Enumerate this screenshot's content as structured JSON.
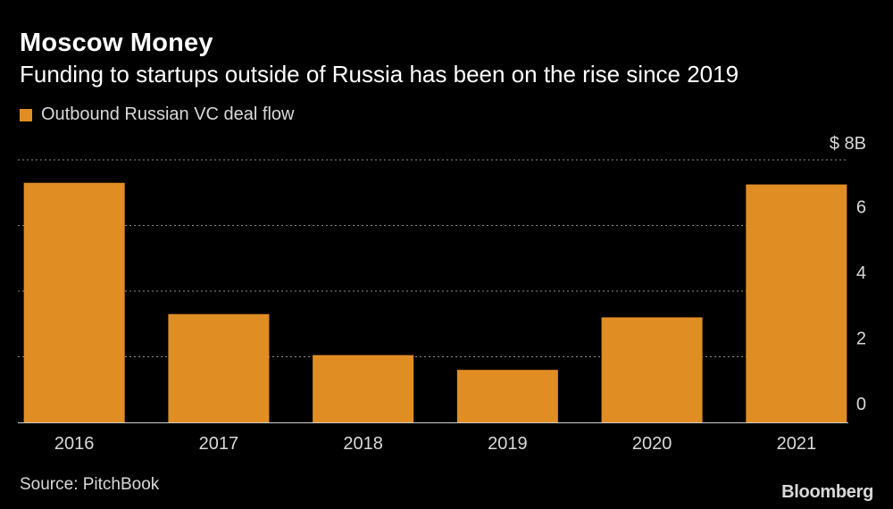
{
  "header": {
    "title": "Moscow Money",
    "subtitle": "Funding to startups outside of Russia has been on the rise since 2019"
  },
  "legend": {
    "label": "Outbound Russian VC deal flow"
  },
  "footer": {
    "source": "Source: PitchBook",
    "logo": "Bloomberg"
  },
  "colors": {
    "bar": "#e08e24",
    "grid": "#8a8a8a",
    "axis_text": "#d9d9d9"
  },
  "chart_data": {
    "type": "bar",
    "categories": [
      "2016",
      "2017",
      "2018",
      "2019",
      "2020",
      "2021"
    ],
    "series": [
      {
        "name": "Outbound Russian VC deal flow",
        "values": [
          7.3,
          3.3,
          2.05,
          1.6,
          3.2,
          7.25
        ]
      }
    ],
    "ylim": [
      0,
      8
    ],
    "yticks": [
      {
        "value": 8,
        "label": "$ 8B"
      },
      {
        "value": 6,
        "label": "6"
      },
      {
        "value": 4,
        "label": "4"
      },
      {
        "value": 2,
        "label": "2"
      },
      {
        "value": 0,
        "label": "0"
      }
    ],
    "grid": true,
    "y_axis_position": "right"
  }
}
